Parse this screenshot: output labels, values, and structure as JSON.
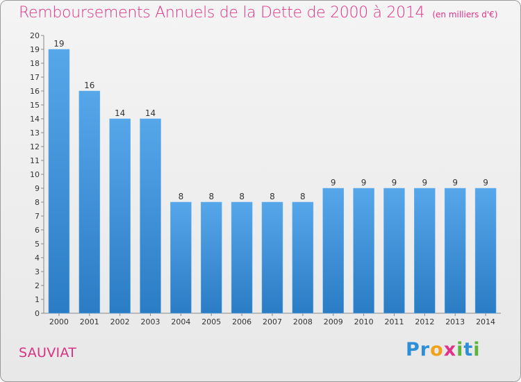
{
  "header": {
    "title": "Remboursements Annuels de la Dette de 2000 à 2014",
    "unit": "(en milliers d'€)"
  },
  "footer": {
    "commune": "SAUVIAT",
    "logo_letters": [
      "P",
      "r",
      "o",
      "x",
      "i",
      "t",
      "i"
    ],
    "logo_colors": [
      "#2d8fd6",
      "#2d8fd6",
      "#f0a21a",
      "#e0328a",
      "#5bb53a",
      "#2d8fd6",
      "#5bb53a"
    ]
  },
  "colors": {
    "bar": "#4a9be0",
    "bar_dark": "#2a7cc4",
    "title": "#e0328a"
  },
  "chart_data": {
    "type": "bar",
    "title": "Remboursements Annuels de la Dette de 2000 à 2014",
    "xlabel": "",
    "ylabel": "",
    "categories": [
      "2000",
      "2001",
      "2002",
      "2003",
      "2004",
      "2005",
      "2006",
      "2007",
      "2008",
      "2009",
      "2010",
      "2011",
      "2012",
      "2013",
      "2014"
    ],
    "values": [
      19,
      16,
      14,
      14,
      8,
      8,
      8,
      8,
      8,
      9,
      9,
      9,
      9,
      9,
      9
    ],
    "ylim": [
      0,
      20
    ],
    "yticks": [
      "0",
      "1",
      "2",
      "3",
      "4",
      "5",
      "6",
      "7",
      "8",
      "9",
      "10",
      "11",
      "12",
      "13",
      "14",
      "15",
      "16",
      "17",
      "18",
      "19",
      "20"
    ],
    "grid": false,
    "legend": "none"
  }
}
